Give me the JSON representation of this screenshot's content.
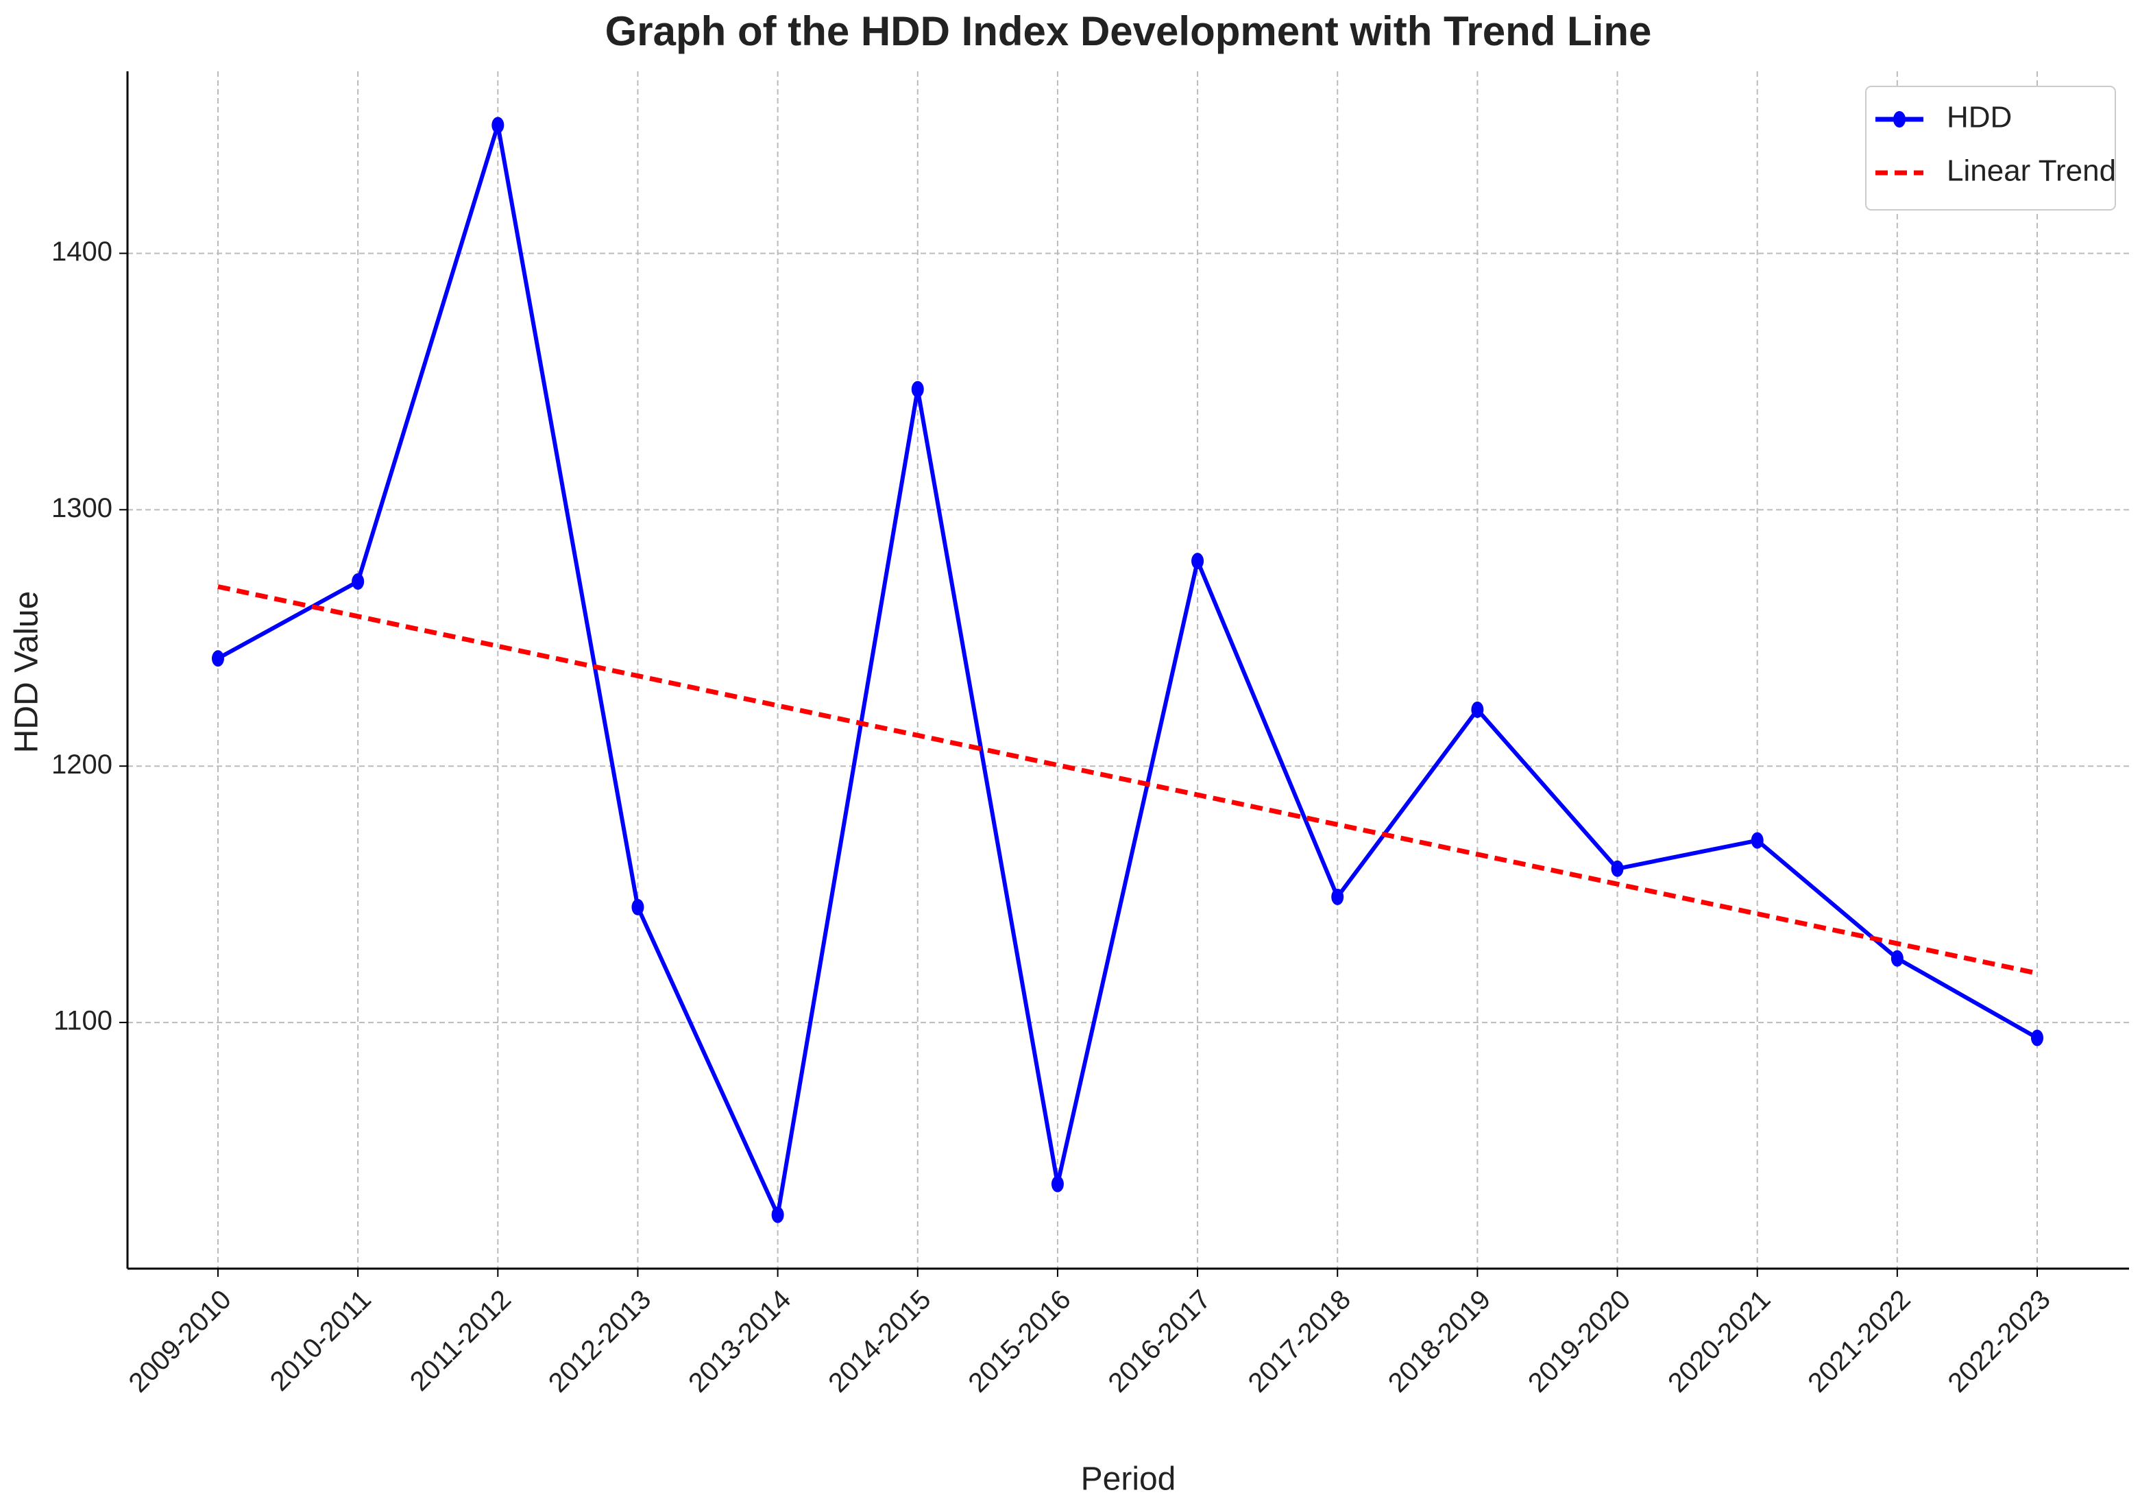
{
  "chart_data": {
    "type": "line",
    "title": "Graph of the HDD Index Development with Trend Line",
    "x_label": "Period",
    "y_label": "HDD Value",
    "categories": [
      "2009-2010",
      "2010-2011",
      "2011-2012",
      "2012-2013",
      "2013-2014",
      "2014-2015",
      "2015-2016",
      "2016-2017",
      "2017-2018",
      "2018-2019",
      "2019-2020",
      "2020-2021",
      "2021-2022",
      "2022-2023"
    ],
    "series": [
      {
        "name": "HDD",
        "color": "#0000ff",
        "style": "solid",
        "marker": true,
        "values": [
          1242,
          1272,
          1450,
          1145,
          1025,
          1347,
          1037,
          1280,
          1149,
          1222,
          1160,
          1171,
          1125,
          1094
        ]
      },
      {
        "name": "Linear Trend",
        "color": "#ff0000",
        "style": "dashed",
        "marker": false,
        "values": [
          1270,
          1258.4,
          1246.8,
          1235.2,
          1223.6,
          1212,
          1200.4,
          1188.8,
          1177.2,
          1165.6,
          1154,
          1142.4,
          1130.8,
          1119.2
        ]
      }
    ],
    "ylim": [
      1004,
      1471
    ],
    "yticks": [
      1100,
      1200,
      1300,
      1400
    ],
    "grid": true,
    "legend": "upper right"
  }
}
